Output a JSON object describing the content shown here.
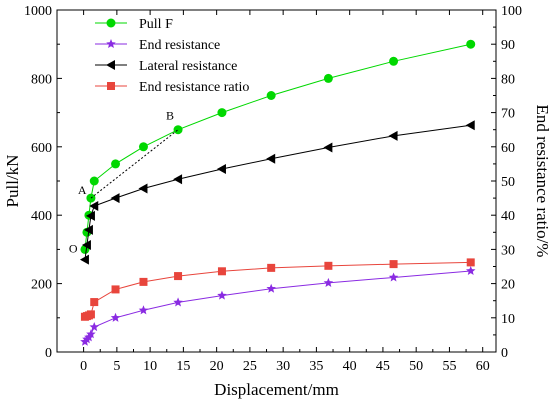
{
  "chart_data": {
    "type": "line",
    "xlabel": "Displacement/mm",
    "ylabel": "Pull/kN",
    "y2label": "End resistance ratio/%",
    "xlim": [
      -4,
      62
    ],
    "ylim": [
      0,
      1000
    ],
    "y2lim": [
      0,
      100
    ],
    "xticks": [
      0,
      5,
      10,
      15,
      20,
      25,
      30,
      35,
      40,
      45,
      50,
      55,
      60
    ],
    "yticks": [
      0,
      200,
      400,
      600,
      800,
      1000
    ],
    "y2ticks": [
      0,
      10,
      20,
      30,
      40,
      50,
      60,
      70,
      80,
      90,
      100
    ],
    "grid": false,
    "legend_position": "top-left",
    "series": [
      {
        "name": "Pull F",
        "axis": "left",
        "marker": "circle",
        "color": "#00d800",
        "x": [
          0.2,
          0.5,
          0.8,
          1.1,
          1.6,
          4.8,
          9.0,
          14.2,
          20.8,
          28.2,
          36.8,
          46.6,
          58.2
        ],
        "y": [
          300,
          350,
          400,
          450,
          500,
          550,
          600,
          650,
          700,
          750,
          800,
          850,
          900
        ]
      },
      {
        "name": "End resistance",
        "axis": "left",
        "marker": "star",
        "color": "#8a2be2",
        "x": [
          0.2,
          0.5,
          0.8,
          1.1,
          1.6,
          4.8,
          9.0,
          14.2,
          20.8,
          28.2,
          36.8,
          46.6,
          58.2
        ],
        "y": [
          30,
          37,
          43,
          52,
          73,
          100,
          122,
          145,
          165,
          185,
          202,
          218,
          237
        ]
      },
      {
        "name": "Lateral resistance",
        "axis": "left",
        "marker": "triangle-left",
        "color": "#000000",
        "x": [
          0.2,
          0.5,
          0.8,
          1.1,
          1.6,
          4.8,
          9.0,
          14.2,
          20.8,
          28.2,
          36.8,
          46.6,
          58.2
        ],
        "y": [
          270,
          313,
          357,
          398,
          427,
          450,
          478,
          505,
          535,
          565,
          598,
          632,
          663
        ]
      },
      {
        "name": "End resistance ratio",
        "axis": "right",
        "marker": "square",
        "color": "#e8453c",
        "x": [
          0.2,
          0.5,
          0.8,
          1.1,
          1.6,
          4.8,
          9.0,
          14.2,
          20.8,
          28.2,
          36.8,
          46.6,
          58.2
        ],
        "y": [
          10.3,
          10.5,
          10.7,
          11.0,
          14.6,
          18.3,
          20.5,
          22.2,
          23.6,
          24.6,
          25.2,
          25.7,
          26.2
        ]
      }
    ],
    "annotations": [
      {
        "label": "A",
        "x": 1.1,
        "y": 450
      },
      {
        "label": "B",
        "x": 14.2,
        "y": 650
      },
      {
        "label": "O",
        "x": 0.2,
        "y": 300
      }
    ]
  }
}
